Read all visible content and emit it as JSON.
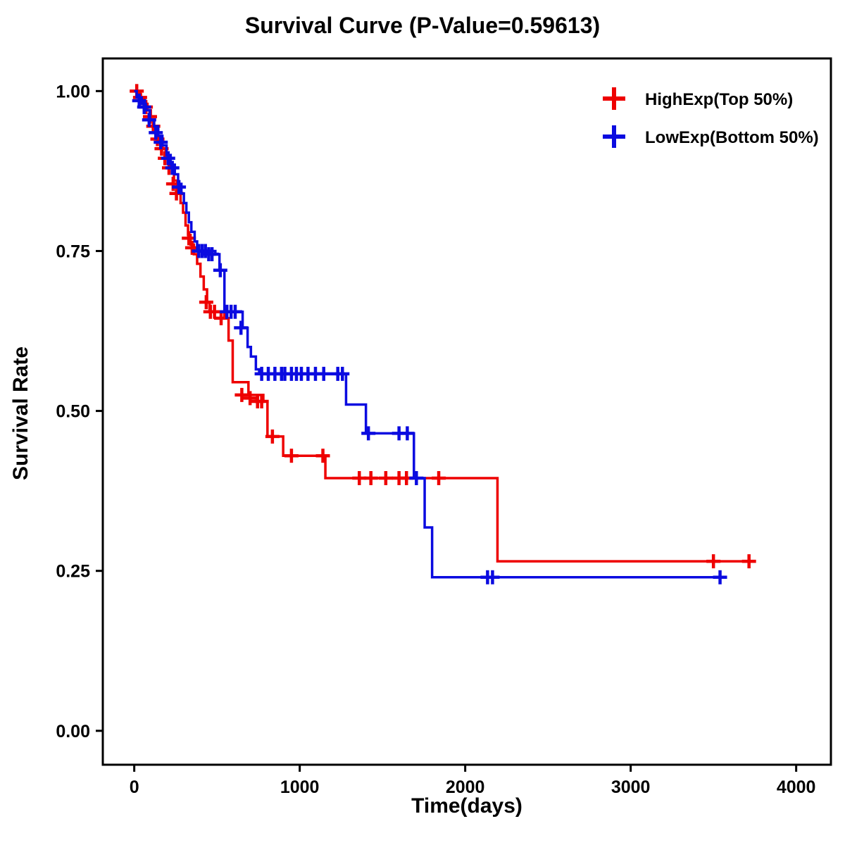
{
  "chart_data": {
    "type": "line",
    "subtype": "kaplan-meier-step",
    "title": "Survival Curve (P-Value=0.59613)",
    "xlabel": "Time(days)",
    "ylabel": "Survival Rate",
    "xlim": [
      -190,
      4210
    ],
    "ylim": [
      -0.053,
      1.051
    ],
    "grid": false,
    "legend_position": "top-right-inside",
    "xticks": [
      {
        "v": 0,
        "label": "0"
      },
      {
        "v": 1000,
        "label": "1000"
      },
      {
        "v": 2000,
        "label": "2000"
      },
      {
        "v": 3000,
        "label": "3000"
      },
      {
        "v": 4000,
        "label": "4000"
      }
    ],
    "yticks": [
      {
        "v": 0.0,
        "label": "0.00"
      },
      {
        "v": 0.25,
        "label": "0.25"
      },
      {
        "v": 0.5,
        "label": "0.50"
      },
      {
        "v": 0.75,
        "label": "0.75"
      },
      {
        "v": 1.0,
        "label": "1.00"
      }
    ],
    "series": [
      {
        "name": "HighExp(Top 50%)",
        "color": "#EE0000",
        "start": [
          0,
          1.0
        ],
        "end_time": 3750,
        "events": [
          [
            20,
            0.995
          ],
          [
            40,
            0.99
          ],
          [
            60,
            0.98
          ],
          [
            80,
            0.97
          ],
          [
            100,
            0.955
          ],
          [
            120,
            0.94
          ],
          [
            145,
            0.925
          ],
          [
            170,
            0.91
          ],
          [
            190,
            0.895
          ],
          [
            215,
            0.88
          ],
          [
            240,
            0.86
          ],
          [
            260,
            0.845
          ],
          [
            280,
            0.825
          ],
          [
            295,
            0.81
          ],
          [
            310,
            0.79
          ],
          [
            325,
            0.775
          ],
          [
            340,
            0.76
          ],
          [
            360,
            0.745
          ],
          [
            380,
            0.73
          ],
          [
            400,
            0.71
          ],
          [
            420,
            0.69
          ],
          [
            440,
            0.67
          ],
          [
            455,
            0.655
          ],
          [
            545,
            0.645
          ],
          [
            570,
            0.61
          ],
          [
            595,
            0.545
          ],
          [
            690,
            0.525
          ],
          [
            780,
            0.515
          ],
          [
            805,
            0.46
          ],
          [
            900,
            0.43
          ],
          [
            1155,
            0.395
          ],
          [
            2195,
            0.265
          ]
        ],
        "censors": [
          [
            15,
            1.0
          ],
          [
            35,
            0.99
          ],
          [
            70,
            0.975
          ],
          [
            95,
            0.96
          ],
          [
            115,
            0.945
          ],
          [
            140,
            0.925
          ],
          [
            165,
            0.91
          ],
          [
            185,
            0.895
          ],
          [
            210,
            0.88
          ],
          [
            235,
            0.855
          ],
          [
            255,
            0.84
          ],
          [
            330,
            0.77
          ],
          [
            350,
            0.755
          ],
          [
            435,
            0.67
          ],
          [
            460,
            0.655
          ],
          [
            485,
            0.655
          ],
          [
            525,
            0.645
          ],
          [
            650,
            0.525
          ],
          [
            700,
            0.52
          ],
          [
            745,
            0.515
          ],
          [
            770,
            0.515
          ],
          [
            835,
            0.46
          ],
          [
            950,
            0.43
          ],
          [
            1140,
            0.43
          ],
          [
            1360,
            0.395
          ],
          [
            1430,
            0.395
          ],
          [
            1520,
            0.395
          ],
          [
            1600,
            0.395
          ],
          [
            1645,
            0.395
          ],
          [
            1840,
            0.395
          ],
          [
            3500,
            0.265
          ],
          [
            3715,
            0.265
          ]
        ]
      },
      {
        "name": "LowExp(Bottom 50%)",
        "color": "#0B0BE0",
        "start": [
          0,
          1.0
        ],
        "end_time": 3550,
        "events": [
          [
            15,
            0.99
          ],
          [
            45,
            0.98
          ],
          [
            70,
            0.97
          ],
          [
            95,
            0.955
          ],
          [
            120,
            0.945
          ],
          [
            145,
            0.93
          ],
          [
            170,
            0.915
          ],
          [
            195,
            0.9
          ],
          [
            220,
            0.885
          ],
          [
            245,
            0.87
          ],
          [
            265,
            0.855
          ],
          [
            285,
            0.84
          ],
          [
            300,
            0.825
          ],
          [
            315,
            0.81
          ],
          [
            330,
            0.795
          ],
          [
            345,
            0.78
          ],
          [
            365,
            0.765
          ],
          [
            380,
            0.75
          ],
          [
            490,
            0.745
          ],
          [
            515,
            0.72
          ],
          [
            545,
            0.655
          ],
          [
            655,
            0.63
          ],
          [
            685,
            0.6
          ],
          [
            705,
            0.585
          ],
          [
            735,
            0.565
          ],
          [
            755,
            0.558
          ],
          [
            1280,
            0.51
          ],
          [
            1400,
            0.465
          ],
          [
            1690,
            0.395
          ],
          [
            1755,
            0.318
          ],
          [
            1800,
            0.24
          ]
        ],
        "censors": [
          [
            30,
            0.985
          ],
          [
            60,
            0.975
          ],
          [
            90,
            0.955
          ],
          [
            130,
            0.935
          ],
          [
            160,
            0.92
          ],
          [
            205,
            0.895
          ],
          [
            230,
            0.88
          ],
          [
            270,
            0.85
          ],
          [
            390,
            0.75
          ],
          [
            410,
            0.75
          ],
          [
            430,
            0.75
          ],
          [
            450,
            0.745
          ],
          [
            470,
            0.745
          ],
          [
            520,
            0.72
          ],
          [
            560,
            0.655
          ],
          [
            585,
            0.655
          ],
          [
            610,
            0.655
          ],
          [
            645,
            0.63
          ],
          [
            770,
            0.558
          ],
          [
            810,
            0.558
          ],
          [
            850,
            0.558
          ],
          [
            890,
            0.558
          ],
          [
            910,
            0.558
          ],
          [
            950,
            0.558
          ],
          [
            980,
            0.558
          ],
          [
            1010,
            0.558
          ],
          [
            1050,
            0.558
          ],
          [
            1095,
            0.558
          ],
          [
            1145,
            0.558
          ],
          [
            1230,
            0.558
          ],
          [
            1258,
            0.558
          ],
          [
            1415,
            0.465
          ],
          [
            1600,
            0.465
          ],
          [
            1650,
            0.465
          ],
          [
            1705,
            0.395
          ],
          [
            2135,
            0.24
          ],
          [
            2165,
            0.24
          ],
          [
            3540,
            0.24
          ]
        ]
      }
    ]
  }
}
